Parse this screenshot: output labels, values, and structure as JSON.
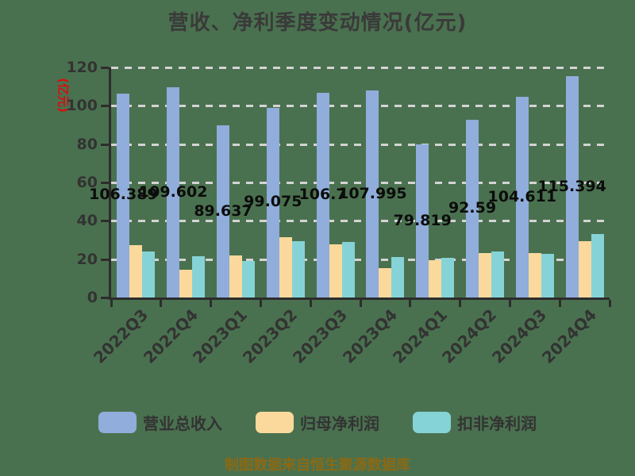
{
  "title": "营收、净利季度变动情况(亿元)",
  "footer": "制图数据来自恒生聚源数据库",
  "y_axis": {
    "unit_label": "(亿元)",
    "tick_labels": [
      "0",
      "20",
      "40",
      "60",
      "80",
      "100",
      "120"
    ]
  },
  "x_axis": {
    "tick_labels": [
      "2022Q3",
      "2022Q4",
      "2023Q1",
      "2023Q2",
      "2023Q3",
      "2023Q4",
      "2024Q1",
      "2024Q2",
      "2024Q3",
      "2024Q4"
    ]
  },
  "colors": {
    "background": "#4A714F",
    "title_text": "#3A3A3A",
    "axis_line": "#2D2D2D",
    "tick_text": "#333333",
    "bar_label_text": "#0C0C0C",
    "gridline": "#D4D4D4",
    "unit_label_text": "#D51010",
    "footer_text": "#8B6914",
    "revenue_bar": "#90ADDB",
    "net_profit_bar": "#FBD99C",
    "non_gaap_bar": "#85D3D6"
  },
  "chart_data": {
    "type": "bar",
    "title": "营收、净利季度变动情况(亿元)",
    "ylabel": "(亿元)",
    "xlabel": "",
    "ylim": [
      0,
      120
    ],
    "grid": true,
    "legend_position": "bottom",
    "categories": [
      "2022Q3",
      "2022Q4",
      "2023Q1",
      "2023Q2",
      "2023Q3",
      "2023Q4",
      "2024Q1",
      "2024Q2",
      "2024Q3",
      "2024Q4"
    ],
    "series": [
      {
        "name": "营业总收入",
        "color": "#90ADDB",
        "values": [
          106.389,
          109.602,
          89.637,
          99.075,
          106.7,
          107.995,
          79.819,
          92.59,
          104.611,
          115.394
        ],
        "labels": [
          "106.389",
          "109.602",
          "89.637",
          "99.075",
          "106.7",
          "107.995",
          "79.819",
          "92.59",
          "104.611",
          "115.394"
        ]
      },
      {
        "name": "归母净利润",
        "color": "#FBD99C",
        "values": [
          27.3,
          14.5,
          22.0,
          31.3,
          27.6,
          15.4,
          19.3,
          23.0,
          23.2,
          29.2
        ]
      },
      {
        "name": "扣非净利润",
        "color": "#85D3D6",
        "values": [
          24.1,
          21.4,
          19.0,
          29.2,
          29.0,
          21.0,
          20.8,
          24.1,
          22.9,
          33.1
        ]
      }
    ]
  }
}
